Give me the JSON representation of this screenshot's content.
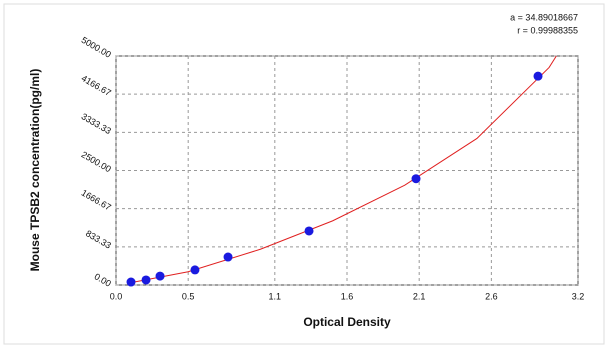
{
  "chart_data": {
    "type": "scatter",
    "annotations": [
      "a = 34.89018667",
      "r = 0.99988355"
    ],
    "xlabel": "Optical Density",
    "ylabel": "Mouse TPSB2 concentration(pg/ml)",
    "xlim": [
      0,
      3.2
    ],
    "xticks": [
      {
        "value": 0,
        "label": "0.0"
      },
      0.5,
      1.1,
      1.6,
      2.1,
      2.6,
      3.2
    ],
    "ylim": [
      0,
      5000
    ],
    "yticks": [
      {
        "value": 0,
        "label": "0.00"
      },
      833.33,
      1666.67,
      {
        "value": 2500,
        "label": "2500.00"
      },
      3333.33,
      4166.67,
      {
        "value": 5000,
        "label": "5000.00"
      }
    ],
    "grid": true,
    "series": [
      {
        "color": "#1a1adf",
        "x": [
          0.104,
          0.208,
          0.305,
          0.547,
          0.776,
          1.337,
          2.078,
          2.923
        ],
        "values": [
          65,
          110,
          195,
          330,
          610,
          1180,
          2320,
          4560
        ]
      },
      {
        "color": "#e02020",
        "x": [
          0.1,
          0.5,
          1.0,
          1.5,
          2.0,
          2.5,
          3.0,
          3.05
        ],
        "values": [
          50,
          290,
          780,
          1400,
          2180,
          3200,
          4750,
          5000
        ]
      }
    ]
  }
}
